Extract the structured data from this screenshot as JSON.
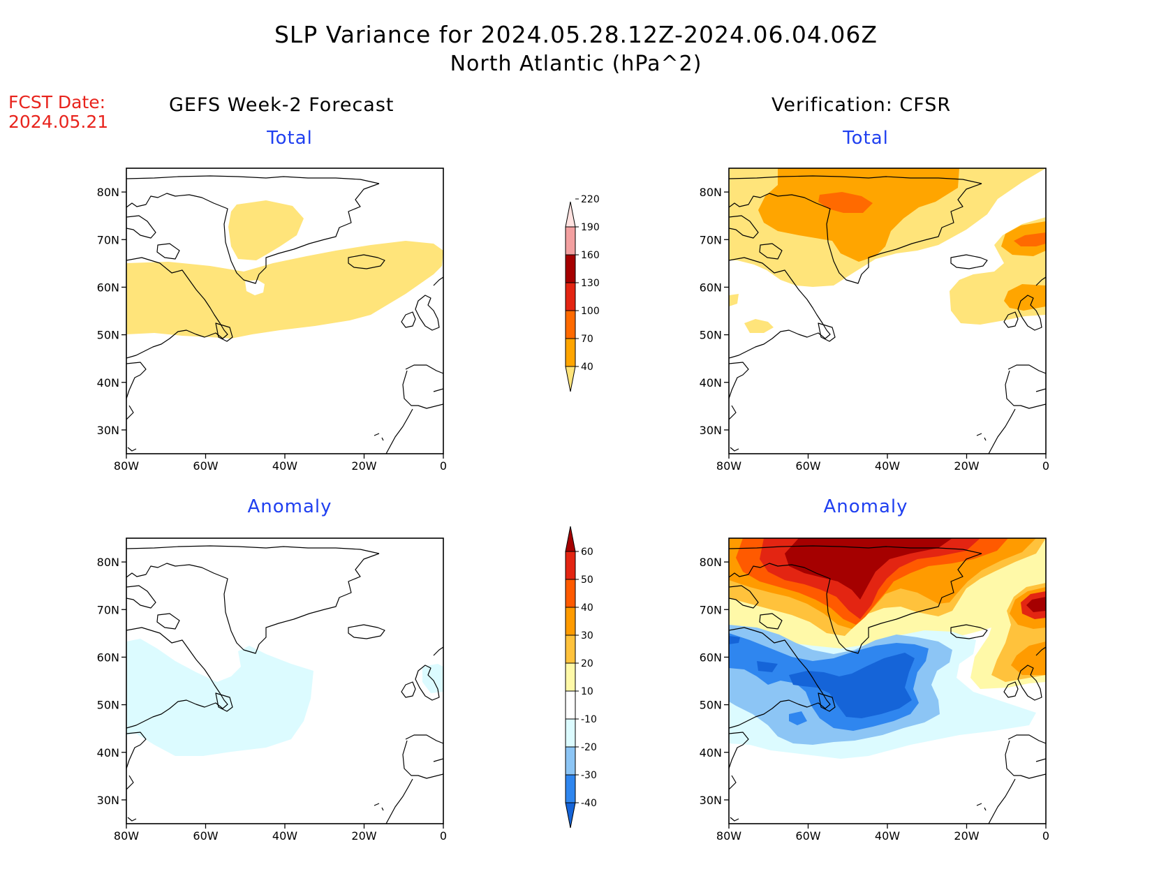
{
  "title": {
    "line1": "SLP Variance for 2024.05.28.12Z-2024.06.04.06Z",
    "line2": "North Atlantic (hPa^2)"
  },
  "fcst_date": {
    "label": "FCST Date:",
    "value": "2024.05.21"
  },
  "columns": {
    "left": "GEFS Week-2 Forecast",
    "right": "Verification: CFSR"
  },
  "panel_titles": {
    "top": "Total",
    "bottom": "Anomaly"
  },
  "axes": {
    "lon_ticks": [
      "80W",
      "60W",
      "40W",
      "20W",
      "0"
    ],
    "lat_ticks": [
      "80N",
      "70N",
      "60N",
      "50N",
      "40N",
      "30N"
    ],
    "lon_range": [
      -80,
      0
    ],
    "lat_range": [
      25,
      85
    ]
  },
  "colorbar_total": {
    "levels": [
      "40",
      "70",
      "100",
      "130",
      "160",
      "190",
      "220"
    ],
    "colors": [
      "#ffe47a",
      "#ffa500",
      "#ff6a00",
      "#e32512",
      "#a50000",
      "#f3a0a0",
      "#ffe2e0"
    ]
  },
  "colorbar_anomaly": {
    "levels": [
      "-40",
      "-30",
      "-20",
      "-10",
      "10",
      "20",
      "30",
      "40",
      "50",
      "60"
    ],
    "colors": [
      "#1564d8",
      "#2f86ef",
      "#8cc5f5",
      "#dcfbff",
      "#ffffff",
      "#fff9a8",
      "#ffc23c",
      "#ff9b00",
      "#ff5a00",
      "#e32512",
      "#a50000"
    ]
  }
}
